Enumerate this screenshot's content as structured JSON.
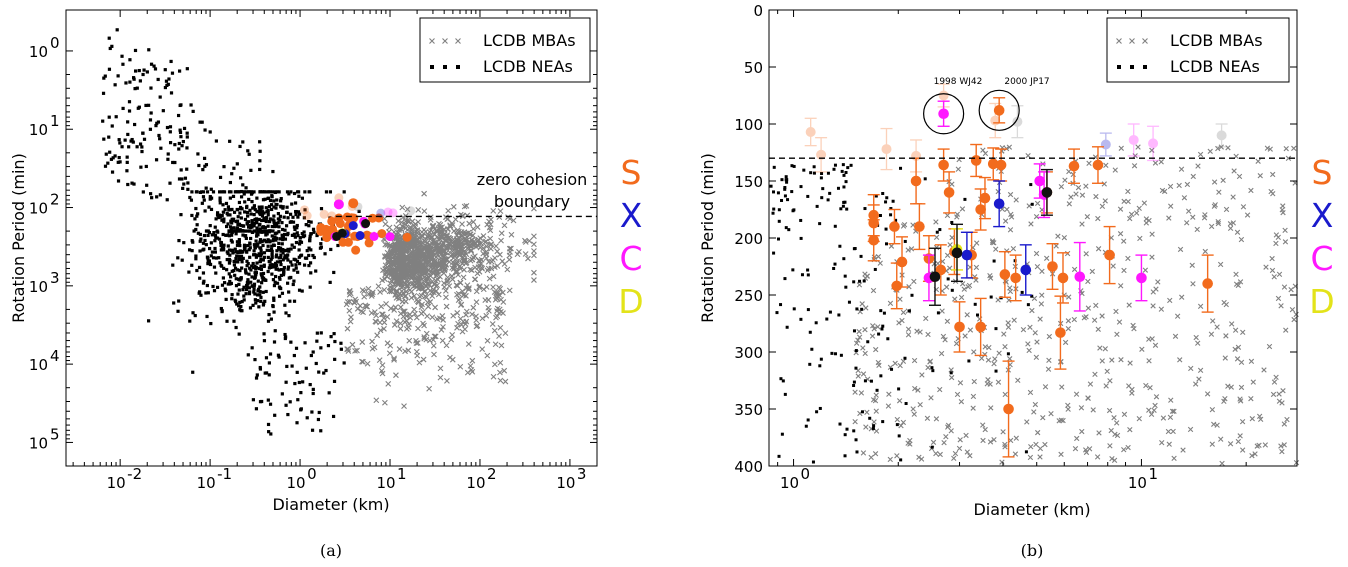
{
  "colors": {
    "S": "#f26b1d",
    "X": "#1a1acc",
    "C": "#ff17ff",
    "D": "#e3e31a",
    "mba": "#808080",
    "nea": "#000000",
    "black": "#111111"
  },
  "class_labels": [
    "S",
    "X",
    "C",
    "D"
  ],
  "legend": {
    "mba": "LCDB MBAs",
    "nea": "LCDB NEAs"
  },
  "chart_data": [
    {
      "panel": "a",
      "type": "scatter",
      "caption": "(a)",
      "xlabel": "Diameter (km)",
      "ylabel": "Rotation Period (min)",
      "xscale": "log",
      "yscale": "log",
      "y_inverted": true,
      "xlim": [
        0.0025,
        2000
      ],
      "ylim": [
        0.3,
        200000
      ],
      "x_tick_labels": [
        "10",
        "10",
        "10",
        "10",
        "10",
        "10",
        "10"
      ],
      "x_tick_exponents": [
        "-2",
        "-1",
        "0",
        "1",
        "2",
        "3",
        ""
      ],
      "x_tick_values": [
        0.01,
        0.1,
        1,
        10,
        100,
        1000
      ],
      "y_tick_values": [
        1,
        10,
        100,
        1000,
        10000,
        100000
      ],
      "y_tick_base": "10",
      "y_tick_exponents": [
        "0",
        "1",
        "2",
        "3",
        "4",
        "5"
      ],
      "zero_cohesion_period": 130,
      "annotation": [
        "zero cohesion",
        "boundary"
      ],
      "legend_position": "top-right",
      "grid": false
    },
    {
      "panel": "b",
      "type": "scatter",
      "caption": "(b)",
      "xlabel": "Diameter (km)",
      "ylabel": "Rotation Period (min)",
      "xscale": "log",
      "yscale": "linear",
      "y_inverted": true,
      "xlim": [
        0.85,
        28
      ],
      "ylim": [
        0,
        400
      ],
      "x_tick_values": [
        1,
        10
      ],
      "x_tick_base": "10",
      "x_tick_exponents": [
        "0",
        "1"
      ],
      "y_tick_values": [
        0,
        50,
        100,
        150,
        200,
        250,
        300,
        350,
        400
      ],
      "y_tick_labels": [
        "0",
        "50",
        "100",
        "150",
        "200",
        "250",
        "300",
        "350",
        "400"
      ],
      "zero_cohesion_period": 130,
      "annotations": [
        "1998 WJ42",
        "2000 JP17"
      ],
      "legend_position": "top-right",
      "grid": false,
      "highlighted": [
        {
          "name": "1998 WJ42",
          "class": "C",
          "diameter": 2.7,
          "period": 91
        },
        {
          "name": "2000 JP17",
          "class": "S",
          "diameter": 3.9,
          "period": 88
        }
      ],
      "faded_points": [
        {
          "class": "S",
          "diameter": 1.12,
          "period": 107,
          "err": 12
        },
        {
          "class": "S",
          "diameter": 1.2,
          "period": 127,
          "err": 15
        },
        {
          "class": "S",
          "diameter": 1.85,
          "period": 122,
          "err": 18
        },
        {
          "class": "S",
          "diameter": 2.25,
          "period": 128,
          "err": 14
        },
        {
          "class": "S",
          "diameter": 2.7,
          "period": 75,
          "err": 10
        },
        {
          "class": "S",
          "diameter": 3.8,
          "period": 97,
          "err": 15
        },
        {
          "class": "gray",
          "diameter": 4.4,
          "period": 98,
          "err": 14
        },
        {
          "class": "gray",
          "diameter": 17,
          "period": 110,
          "err": 10
        },
        {
          "class": "X",
          "diameter": 7.9,
          "period": 118,
          "err": 10
        },
        {
          "class": "C",
          "diameter": 9.5,
          "period": 114,
          "err": 14
        },
        {
          "class": "C",
          "diameter": 10.8,
          "period": 117,
          "err": 15
        }
      ],
      "points": [
        {
          "class": "S",
          "diameter": 1.7,
          "period": 180,
          "err": 18
        },
        {
          "class": "S",
          "diameter": 1.7,
          "period": 187,
          "err": 16
        },
        {
          "class": "S",
          "diameter": 1.7,
          "period": 202,
          "err": 18
        },
        {
          "class": "S",
          "diameter": 1.95,
          "period": 190,
          "err": 15
        },
        {
          "class": "S",
          "diameter": 1.98,
          "period": 242,
          "err": 20
        },
        {
          "class": "S",
          "diameter": 2.05,
          "period": 221,
          "err": 22
        },
        {
          "class": "S",
          "diameter": 2.25,
          "period": 150,
          "err": 20
        },
        {
          "class": "S",
          "diameter": 2.3,
          "period": 190,
          "err": 20
        },
        {
          "class": "S",
          "diameter": 2.45,
          "period": 218,
          "err": 20
        },
        {
          "class": "S",
          "diameter": 2.65,
          "period": 228,
          "err": 22
        },
        {
          "class": "S",
          "diameter": 2.7,
          "period": 136,
          "err": 14
        },
        {
          "class": "S",
          "diameter": 2.8,
          "period": 160,
          "err": 18
        },
        {
          "class": "S",
          "diameter": 2.9,
          "period": 212,
          "err": 20
        },
        {
          "class": "S",
          "diameter": 3.0,
          "period": 278,
          "err": 22
        },
        {
          "class": "S",
          "diameter": 3.25,
          "period": 215,
          "err": 20
        },
        {
          "class": "S",
          "diameter": 3.35,
          "period": 132,
          "err": 14
        },
        {
          "class": "S",
          "diameter": 3.45,
          "period": 175,
          "err": 18
        },
        {
          "class": "S",
          "diameter": 3.55,
          "period": 165,
          "err": 18
        },
        {
          "class": "S",
          "diameter": 3.45,
          "period": 278,
          "err": 25
        },
        {
          "class": "S",
          "diameter": 3.75,
          "period": 135,
          "err": 14
        },
        {
          "class": "S",
          "diameter": 3.95,
          "period": 136,
          "err": 14
        },
        {
          "class": "S",
          "diameter": 4.05,
          "period": 232,
          "err": 20
        },
        {
          "class": "S",
          "diameter": 4.15,
          "period": 350,
          "err": 42
        },
        {
          "class": "S",
          "diameter": 4.35,
          "period": 235,
          "err": 20
        },
        {
          "class": "S",
          "diameter": 5.35,
          "period": 160,
          "err": 18
        },
        {
          "class": "S",
          "diameter": 5.55,
          "period": 225,
          "err": 20
        },
        {
          "class": "S",
          "diameter": 5.85,
          "period": 283,
          "err": 32
        },
        {
          "class": "S",
          "diameter": 5.95,
          "period": 235,
          "err": 22
        },
        {
          "class": "S",
          "diameter": 6.4,
          "period": 137,
          "err": 15
        },
        {
          "class": "S",
          "diameter": 7.5,
          "period": 136,
          "err": 16
        },
        {
          "class": "S",
          "diameter": 8.1,
          "period": 215,
          "err": 25
        },
        {
          "class": "S",
          "diameter": 15.5,
          "period": 240,
          "err": 25
        },
        {
          "class": "X",
          "diameter": 3.15,
          "period": 215,
          "err": 20
        },
        {
          "class": "X",
          "diameter": 3.9,
          "period": 170,
          "err": 20
        },
        {
          "class": "X",
          "diameter": 4.65,
          "period": 228,
          "err": 22
        },
        {
          "class": "C",
          "diameter": 2.45,
          "period": 235,
          "err": 20
        },
        {
          "class": "C",
          "diameter": 5.1,
          "period": 150,
          "err": 15
        },
        {
          "class": "C",
          "diameter": 5.25,
          "period": 162,
          "err": 20
        },
        {
          "class": "C",
          "diameter": 6.65,
          "period": 234,
          "err": 30
        },
        {
          "class": "C",
          "diameter": 10.0,
          "period": 235,
          "err": 20
        },
        {
          "class": "D",
          "diameter": 2.95,
          "period": 210,
          "err": 18
        },
        {
          "class": "black",
          "diameter": 2.55,
          "period": 234,
          "err": 25
        },
        {
          "class": "black",
          "diameter": 2.95,
          "period": 213,
          "err": 25
        },
        {
          "class": "black",
          "diameter": 5.35,
          "period": 160,
          "err": 20
        }
      ]
    }
  ]
}
